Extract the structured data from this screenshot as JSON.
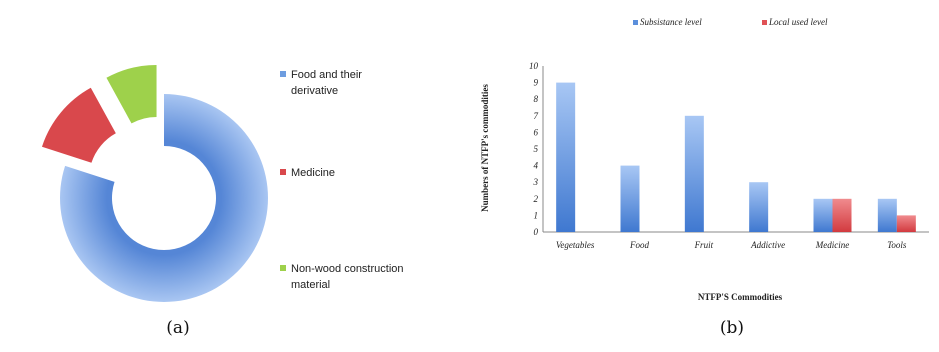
{
  "colors": {
    "food": "#6e9de0",
    "medicine": "#d9484c",
    "nonwood": "#9ed14b",
    "subsistence": "#5b8fdc",
    "local": "#e05256"
  },
  "captions": {
    "a": "(a)",
    "b": "(b)"
  },
  "chart_data": [
    {
      "type": "pie",
      "subtype": "donut",
      "categories": [
        "Food and their derivative",
        "Medicine",
        "Non-wood construction material"
      ],
      "values": [
        80,
        12,
        8
      ],
      "legend_lines": [
        [
          "Food and their",
          "derivative"
        ],
        [
          "Medicine"
        ],
        [
          "Non-wood construction",
          "material"
        ]
      ],
      "legend_position": "right"
    },
    {
      "type": "bar",
      "categories": [
        "Vegetables",
        "Food",
        "Fruit",
        "Addictive",
        "Medicine",
        "Tools"
      ],
      "series": [
        {
          "name": "Subsistance level",
          "values": [
            9,
            4,
            7,
            3,
            2,
            2
          ]
        },
        {
          "name": "Local used level",
          "values": [
            0,
            0,
            0,
            0,
            2,
            1
          ]
        }
      ],
      "xlabel": "NTFP'S Commodities",
      "ylabel": "Numbers of NTFP's commodities",
      "ylim": [
        0,
        10
      ],
      "yticks": [
        "0",
        "1",
        "2",
        "3",
        "4",
        "5",
        "6",
        "7",
        "8",
        "9",
        "10"
      ],
      "grid": false,
      "legend_position": "top"
    }
  ]
}
